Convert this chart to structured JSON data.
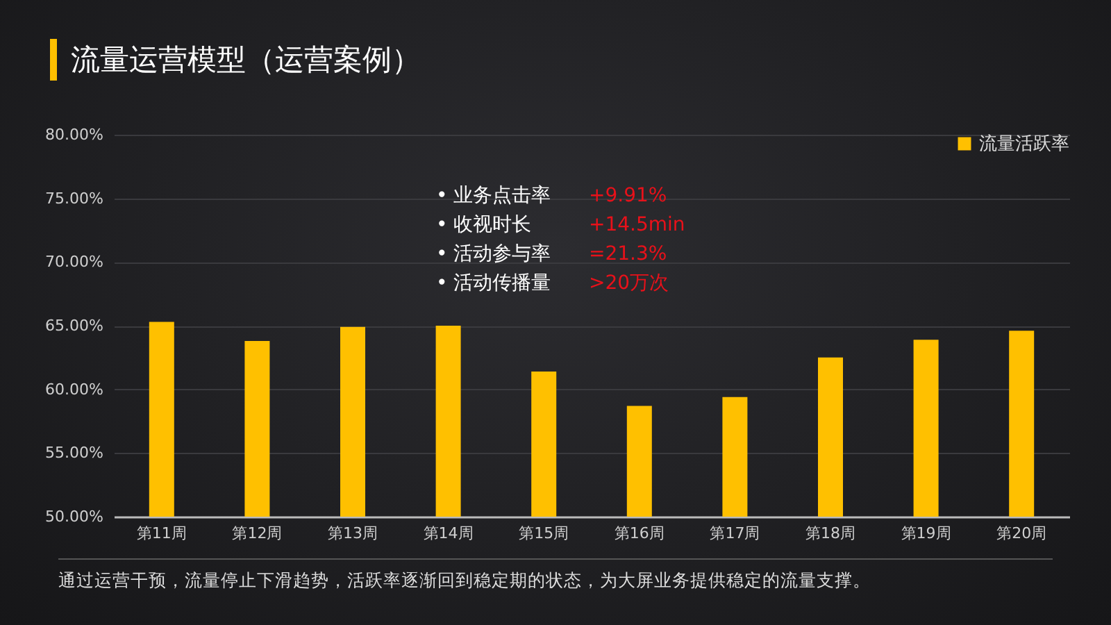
{
  "chart_data": {
    "type": "bar",
    "title": "流量运营模型（运营案例）",
    "categories": [
      "第11周",
      "第12周",
      "第13周",
      "第14周",
      "第15周",
      "第16周",
      "第17周",
      "第18周",
      "第19周",
      "第20周"
    ],
    "series": [
      {
        "name": "流量活跃率",
        "color": "#ffc000",
        "values": [
          65.3,
          63.8,
          64.9,
          65.0,
          61.4,
          58.7,
          59.4,
          62.5,
          63.9,
          64.6
        ]
      }
    ],
    "ylim": [
      50,
      80
    ],
    "yticks": [
      {
        "value": 50,
        "label": "50.00%"
      },
      {
        "value": 55,
        "label": "55.00%"
      },
      {
        "value": 60,
        "label": "60.00%"
      },
      {
        "value": 65,
        "label": "65.00%"
      },
      {
        "value": 70,
        "label": "70.00%"
      },
      {
        "value": 75,
        "label": "75.00%"
      },
      {
        "value": 80,
        "label": "80.00%"
      }
    ],
    "grid": "y",
    "legend": "top right",
    "annotations": [
      "通过运营干预，流量停止下滑趋势，活跃率逐渐回到稳定期的状态，为大屏业务提供稳定的流量支撑。",
      "• 业务点击率 +9.91%",
      "• 收视时长 +14.5min",
      "• 活动参与率 =21.3%",
      "• 活动传播量 >20万次"
    ]
  }
}
